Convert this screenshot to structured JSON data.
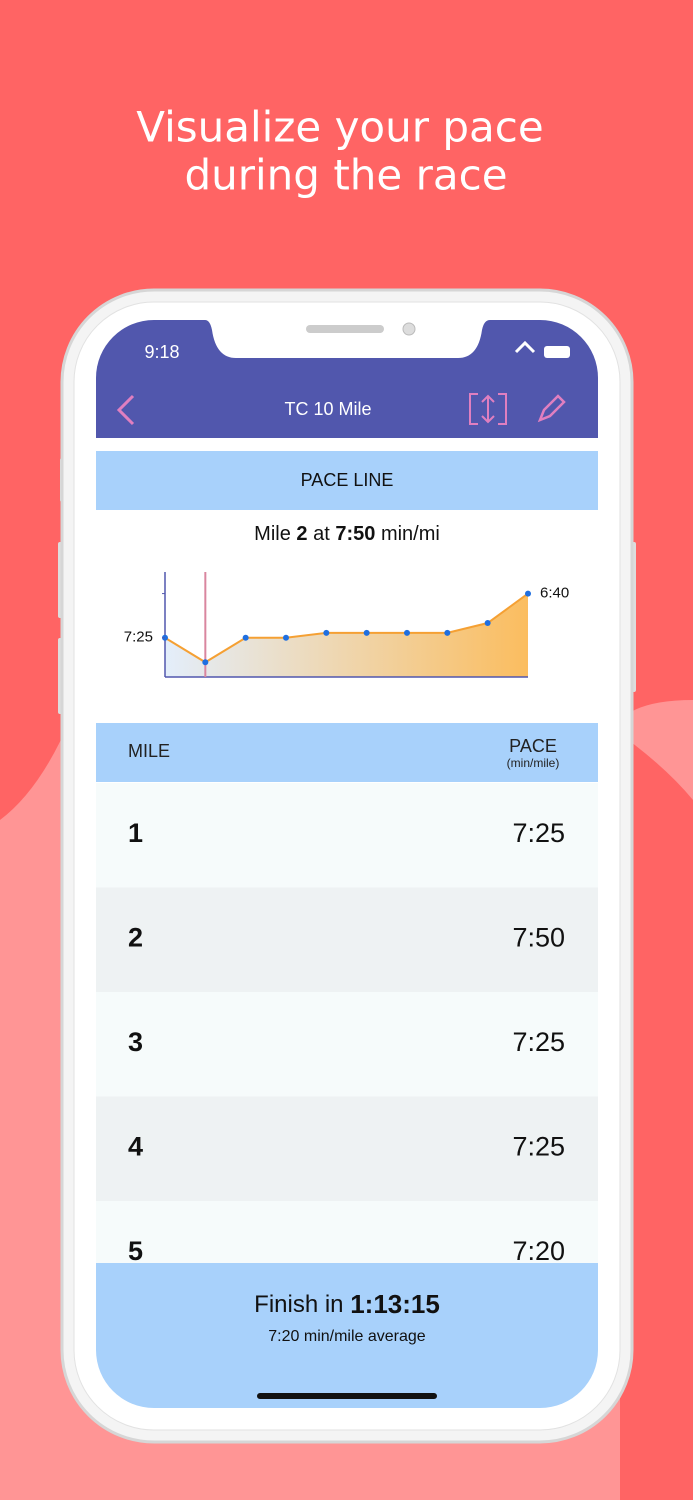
{
  "headline": [
    "Visualize your pace",
    "during the race"
  ],
  "status_bar": {
    "time": "9:18"
  },
  "nav": {
    "title": "TC 10 Mile"
  },
  "section_title": "PACE LINE",
  "summary": {
    "label": "Mile",
    "mile": "2",
    "at": "at",
    "pace": "7:50",
    "unit": "min/mi"
  },
  "chart_data": {
    "type": "line",
    "x": [
      1,
      2,
      3,
      4,
      5,
      6,
      7,
      8,
      9,
      10
    ],
    "values": [
      445,
      470,
      445,
      445,
      440,
      440,
      440,
      440,
      430,
      400
    ],
    "color": "#f5a033",
    "marker_color": "#1f6fe0",
    "xlim": [
      1,
      10
    ],
    "ylim": [
      485,
      378
    ],
    "yticks": [
      {
        "value": 445,
        "label": "7:25"
      },
      {
        "value": 400,
        "label": "6:40"
      }
    ]
  },
  "table": {
    "header": [
      "MILE",
      "PACE",
      "(min/mile)"
    ],
    "rows": [
      [
        "1",
        "7:25"
      ],
      [
        "2",
        "7:50"
      ],
      [
        "3",
        "7:25"
      ],
      [
        "4",
        "7:25"
      ],
      [
        "5",
        "7:20"
      ]
    ]
  },
  "footer": {
    "label": "Finish in",
    "time": "1:13:15",
    "average": "7:20 min/mile average"
  }
}
